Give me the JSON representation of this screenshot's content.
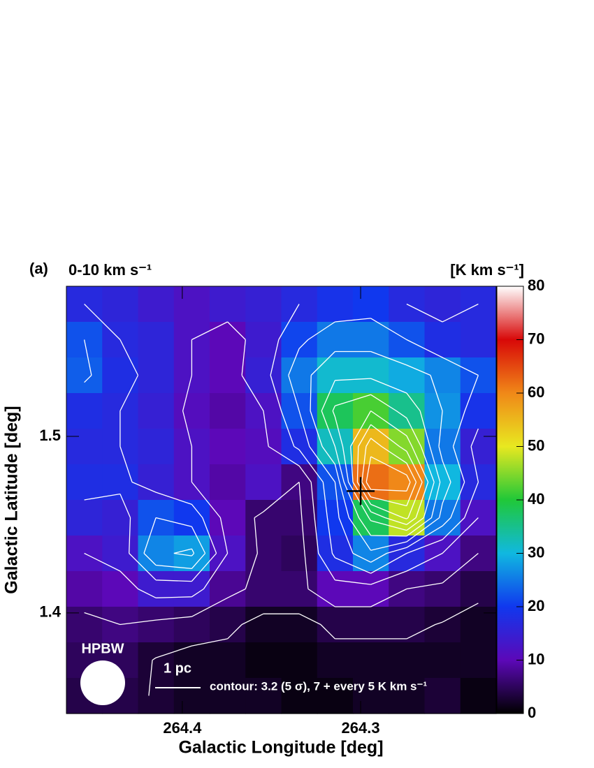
{
  "chart_data": {
    "type": "heatmap",
    "panel_label": "(a)",
    "title": "0-10 km s⁻¹",
    "colorbar_label": "[K km s⁻¹]",
    "xlabel": "Galactic Longitude [deg]",
    "ylabel": "Galactic Latitude [deg]",
    "xlim": [
      264.465,
      264.224
    ],
    "ylim": [
      1.343,
      1.585
    ],
    "xticks": [
      264.4,
      264.3
    ],
    "yticks": [
      1.4,
      1.5
    ],
    "zlim": [
      0,
      80
    ],
    "zticks": [
      0,
      10,
      20,
      30,
      40,
      50,
      60,
      70,
      80
    ],
    "colormap": [
      "#000000",
      "#5c08b8",
      "#1038ee",
      "#10b8e0",
      "#20c838",
      "#e8e820",
      "#f08818",
      "#d80808",
      "#ffffff"
    ],
    "z": [
      [
        17,
        16,
        14,
        12,
        14,
        15,
        17,
        19,
        20,
        17,
        16,
        17
      ],
      [
        22,
        17,
        16,
        12,
        10,
        14,
        21,
        25,
        25,
        22,
        18,
        17
      ],
      [
        23,
        18,
        16,
        12,
        10,
        15,
        25,
        31,
        31,
        29,
        26,
        22
      ],
      [
        18,
        17,
        15,
        11,
        9,
        12,
        22,
        38,
        42,
        35,
        27,
        19
      ],
      [
        17,
        17,
        16,
        12,
        10,
        11,
        18,
        32,
        55,
        45,
        25,
        15
      ],
      [
        18,
        18,
        15,
        12,
        9,
        12,
        7,
        22,
        62,
        60,
        30,
        17
      ],
      [
        16,
        15,
        22,
        20,
        10,
        6,
        6,
        20,
        38,
        48,
        25,
        12
      ],
      [
        12,
        14,
        26,
        28,
        12,
        6,
        5,
        18,
        26,
        17,
        12,
        7
      ],
      [
        9,
        10,
        14,
        14,
        8,
        6,
        6,
        10,
        10,
        7,
        6,
        4
      ],
      [
        6,
        7,
        6,
        5,
        4,
        2,
        2,
        4,
        4,
        4,
        3,
        2
      ],
      [
        5,
        5,
        3,
        2,
        2,
        1,
        1,
        2,
        2,
        2,
        2,
        2
      ],
      [
        4,
        4,
        3,
        2,
        2,
        2,
        1,
        1,
        2,
        2,
        3,
        1
      ]
    ],
    "contour_levels": [
      3.2,
      7,
      12,
      17,
      22,
      27,
      32,
      37,
      42,
      47,
      52,
      57,
      62,
      67,
      72
    ],
    "contour_color": "#ffffff",
    "contour_note": "contour: 3.2 (5 σ), 7 + every 5 K km s⁻¹",
    "marker": {
      "x": 264.3,
      "y": 1.469,
      "color": "#000000"
    },
    "beam_label": "HPBW",
    "scale_label": "1 pc"
  }
}
